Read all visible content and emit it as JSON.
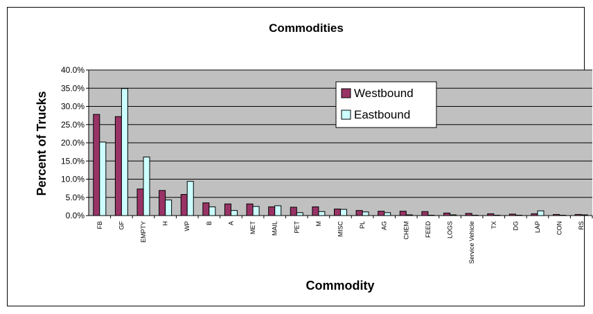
{
  "chart_data": {
    "type": "bar",
    "title": "Commodities",
    "xlabel": "Commodity",
    "ylabel": "Percent of Trucks",
    "ylim": [
      0,
      40
    ],
    "yticks": [
      "0.0%",
      "5.0%",
      "10.0%",
      "15.0%",
      "20.0%",
      "25.0%",
      "30.0%",
      "35.0%",
      "40.0%"
    ],
    "grid": true,
    "legend_position": "top-right",
    "categories": [
      "FB",
      "GF",
      "EMPTY",
      "H",
      "WP",
      "B",
      "A",
      "MET",
      "MAIL",
      "PET",
      "M",
      "MISC",
      "PL",
      "AG",
      "CHEM",
      "FEED",
      "LOGS",
      "Service Vehicle",
      "TX",
      "DG",
      "LAP",
      "CON",
      "RS"
    ],
    "series": [
      {
        "name": "Westbound",
        "color": "#993366",
        "values": [
          27.8,
          27.2,
          7.3,
          6.9,
          5.8,
          3.5,
          3.2,
          3.2,
          2.4,
          2.3,
          2.4,
          1.8,
          1.4,
          1.2,
          1.2,
          1.1,
          0.7,
          0.6,
          0.5,
          0.4,
          0.5,
          0.3,
          0.3
        ]
      },
      {
        "name": "Eastbound",
        "color": "#ccffff",
        "values": [
          20.2,
          34.9,
          16.1,
          4.3,
          9.4,
          2.4,
          1.4,
          2.5,
          2.7,
          0.8,
          1.1,
          1.7,
          1.0,
          0.8,
          0.2,
          0.1,
          0.2,
          0.1,
          0.1,
          0.1,
          1.3,
          0.1,
          0.2
        ]
      }
    ],
    "plot_background": "#c0c0c0",
    "gridline_color": "#000000"
  }
}
